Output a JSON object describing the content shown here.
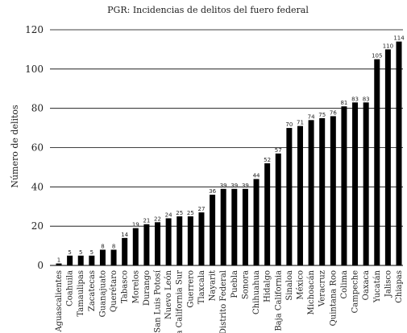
{
  "chart_data": {
    "type": "bar",
    "title": "PGR: Incidencias de delitos del fuero federal",
    "xlabel": "",
    "ylabel": "Número de delitos",
    "ylim": [
      0,
      120
    ],
    "yticks": [
      0,
      20,
      40,
      60,
      80,
      100,
      120
    ],
    "grid": true,
    "categories": [
      "Aguascalientes",
      "Coahuila",
      "Tamaulipas",
      "Zacatecas",
      "Guanajuato",
      "Querétaro",
      "Tabasco",
      "Morelos",
      "Durango",
      "San Luis Potosí",
      "Nuevo León",
      "Baja California Sur",
      "Guerrero",
      "Tlaxcala",
      "Nayarit",
      "Distrito Federal",
      "Puebla",
      "Sonora",
      "Chihuahua",
      "Hidalgo",
      "Baja California",
      "Sinaloa",
      "México",
      "Michoacán",
      "Veracruz",
      "Quintana Roo",
      "Colima",
      "Campeche",
      "Oaxaca",
      "Yucatán",
      "Jalisco",
      "Chiapas"
    ],
    "values": [
      1,
      5,
      5,
      5,
      8,
      8,
      14,
      19,
      21,
      22,
      24,
      25,
      25,
      27,
      36,
      39,
      39,
      39,
      44,
      52,
      57,
      70,
      71,
      74,
      75,
      76,
      81,
      83,
      83,
      105,
      110,
      114
    ],
    "bar_color": "#000000"
  }
}
